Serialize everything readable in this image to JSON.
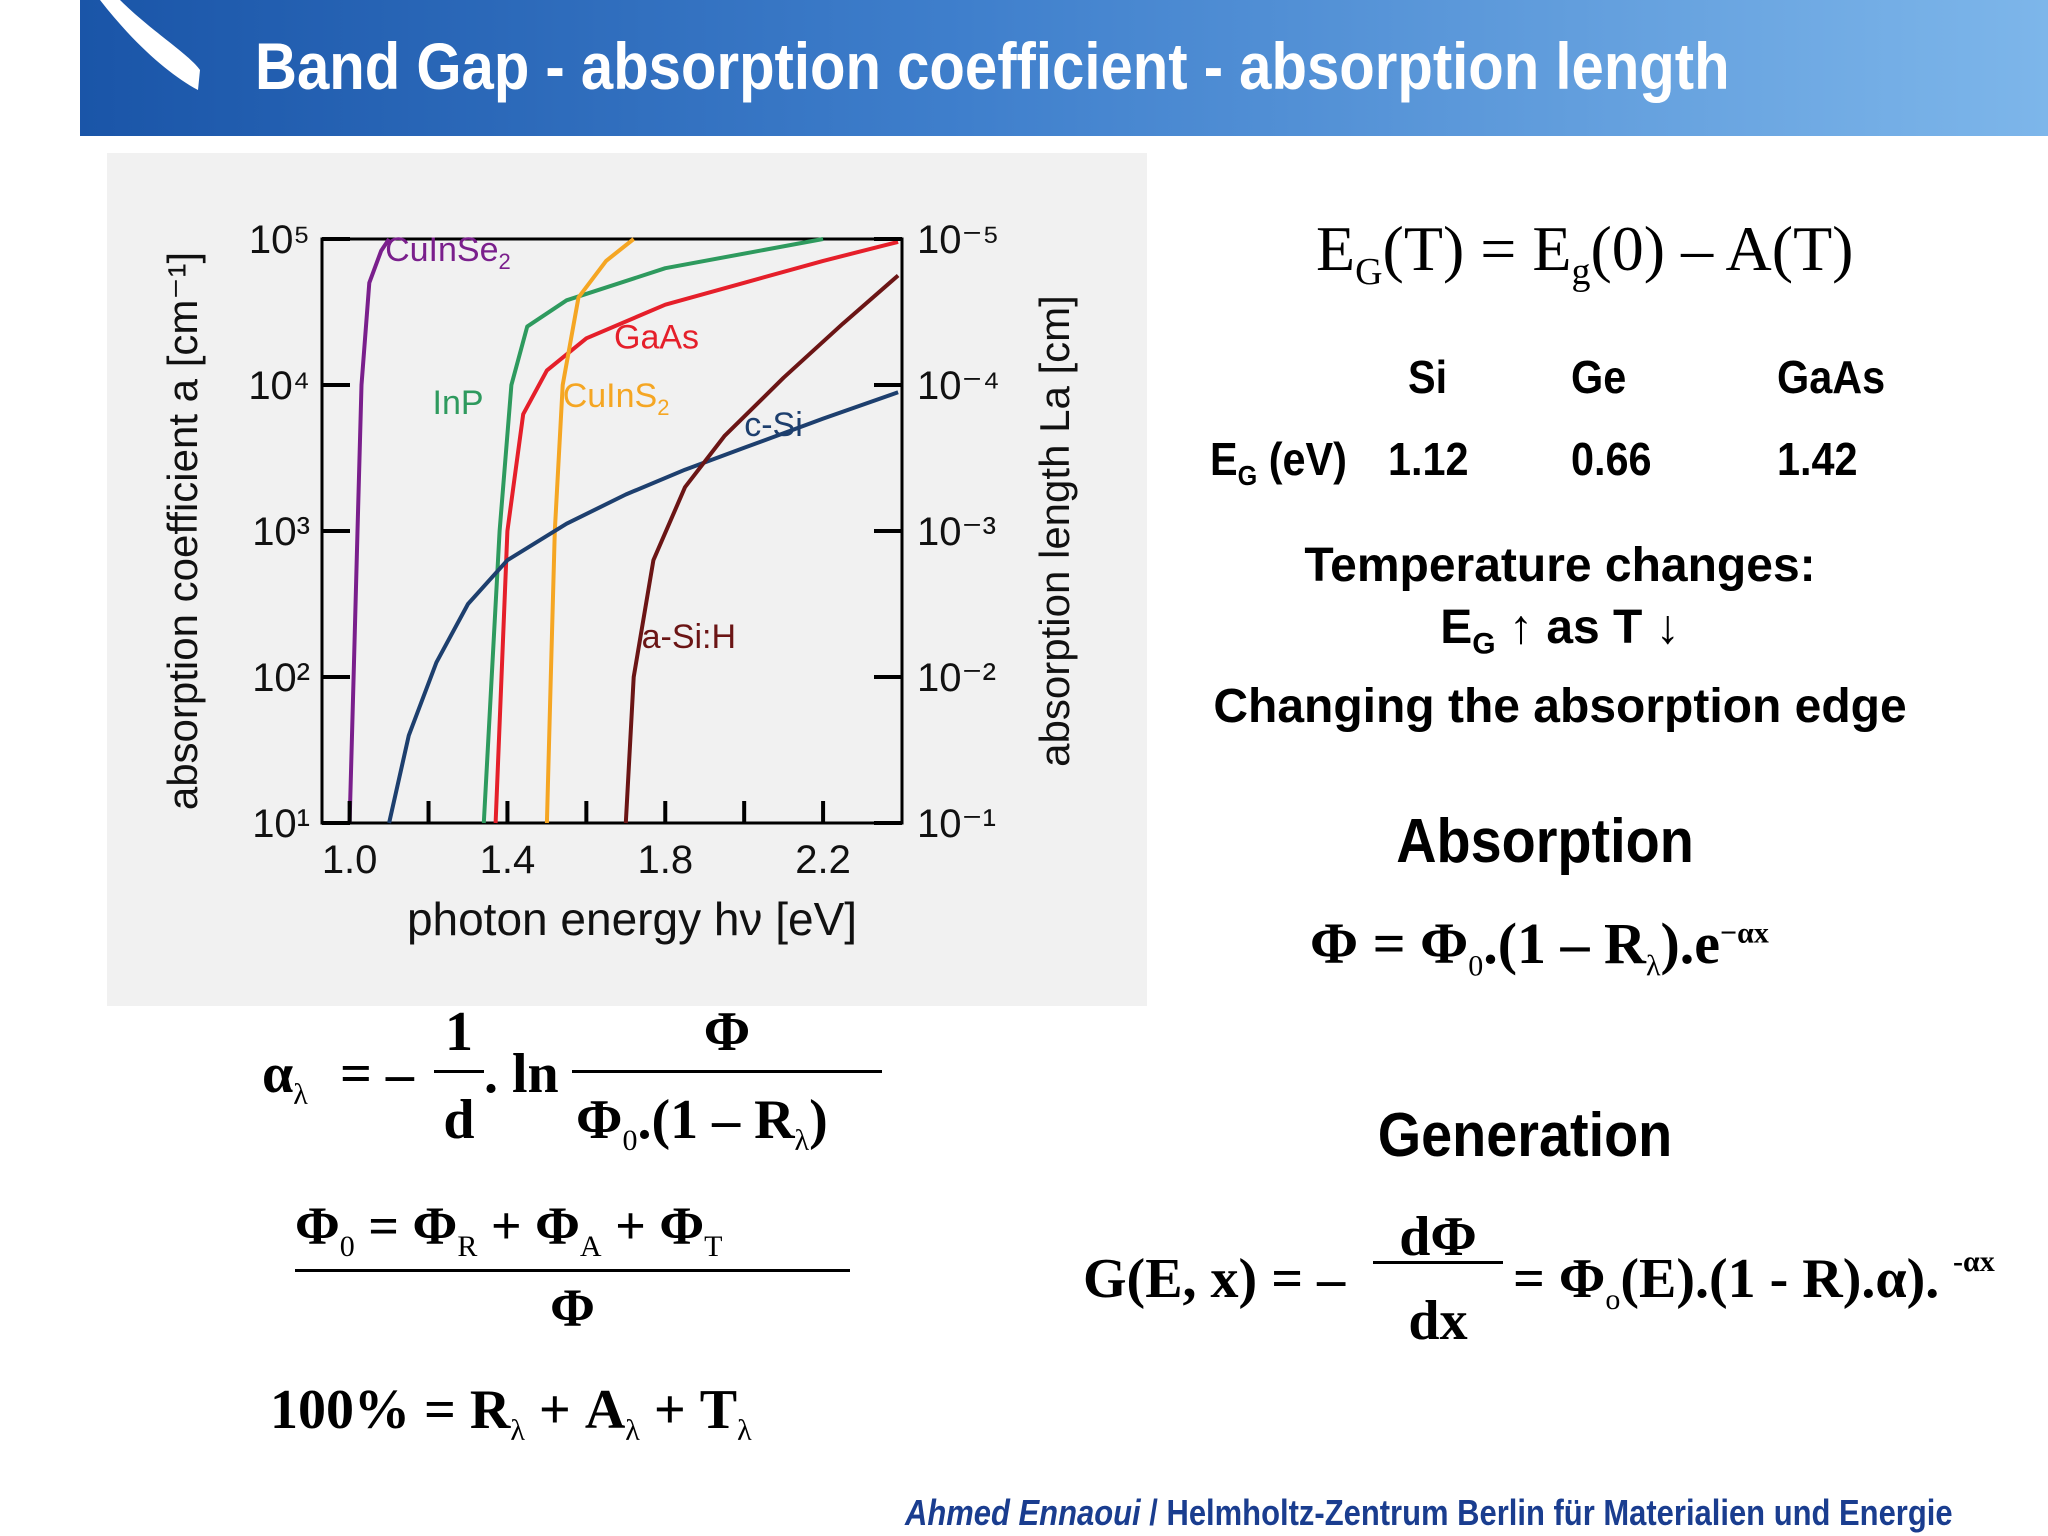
{
  "header": {
    "title": "Band Gap - absorption coefficient - absorption length"
  },
  "chart_data": {
    "type": "line",
    "xlabel": "photon energy hν [eV]",
    "ylabel_left": "absorption coefficient a [cm⁻¹]",
    "ylabel_right": "absorption length La [cm]",
    "xlim": [
      0.93,
      2.4
    ],
    "x_ticks": [
      "1.0",
      "1.4",
      "1.8",
      "2.2"
    ],
    "y_left_scale": "log",
    "y_left_ticks": [
      "10¹",
      "10²",
      "10³",
      "10⁴",
      "10⁵"
    ],
    "y_right_ticks": [
      "10⁻¹",
      "10⁻²",
      "10⁻³",
      "10⁻⁴",
      "10⁻⁵"
    ],
    "ylim_log10": [
      1,
      5
    ],
    "grid": false,
    "series": [
      {
        "name": "CuInSe2",
        "label_main": "CuInSe",
        "label_sub": "2",
        "color": "#7a1f8c",
        "points": [
          [
            1.0,
            1
          ],
          [
            1.01,
            2.0
          ],
          [
            1.02,
            3.0
          ],
          [
            1.03,
            4.0
          ],
          [
            1.05,
            4.7
          ],
          [
            1.08,
            4.92
          ],
          [
            1.1,
            5.0
          ]
        ]
      },
      {
        "name": "InP",
        "label_main": "InP",
        "label_sub": "",
        "color": "#2e9a5e",
        "points": [
          [
            1.34,
            1
          ],
          [
            1.36,
            2.0
          ],
          [
            1.38,
            3.0
          ],
          [
            1.41,
            4.0
          ],
          [
            1.45,
            4.4
          ],
          [
            1.55,
            4.58
          ],
          [
            1.8,
            4.8
          ],
          [
            2.2,
            5.0
          ]
        ]
      },
      {
        "name": "GaAs",
        "label_main": "GaAs",
        "label_sub": "",
        "color": "#e51f2a",
        "points": [
          [
            1.37,
            1
          ],
          [
            1.385,
            2.0
          ],
          [
            1.4,
            3.0
          ],
          [
            1.44,
            3.8
          ],
          [
            1.5,
            4.1
          ],
          [
            1.6,
            4.32
          ],
          [
            1.8,
            4.55
          ],
          [
            2.0,
            4.7
          ],
          [
            2.2,
            4.85
          ],
          [
            2.39,
            4.98
          ]
        ]
      },
      {
        "name": "CuInS2",
        "label_main": "CuInS",
        "label_sub": "2",
        "color": "#f5a623",
        "points": [
          [
            1.5,
            1
          ],
          [
            1.51,
            2.0
          ],
          [
            1.52,
            3.0
          ],
          [
            1.54,
            4.0
          ],
          [
            1.58,
            4.6
          ],
          [
            1.65,
            4.85
          ],
          [
            1.72,
            5.0
          ]
        ]
      },
      {
        "name": "c-Si",
        "label_main": "c-Si",
        "label_sub": "",
        "color": "#1d3f6e",
        "points": [
          [
            1.1,
            1
          ],
          [
            1.15,
            1.6
          ],
          [
            1.22,
            2.1
          ],
          [
            1.3,
            2.5
          ],
          [
            1.4,
            2.8
          ],
          [
            1.55,
            3.05
          ],
          [
            1.7,
            3.25
          ],
          [
            1.85,
            3.42
          ],
          [
            2.0,
            3.57
          ],
          [
            2.2,
            3.77
          ],
          [
            2.39,
            3.95
          ]
        ]
      },
      {
        "name": "a-Si:H",
        "label_main": "a-Si:H",
        "label_sub": "",
        "color": "#6b1515",
        "points": [
          [
            1.7,
            1
          ],
          [
            1.72,
            2.0
          ],
          [
            1.77,
            2.8
          ],
          [
            1.85,
            3.3
          ],
          [
            1.95,
            3.65
          ],
          [
            2.1,
            4.05
          ],
          [
            2.25,
            4.42
          ],
          [
            2.39,
            4.75
          ]
        ]
      }
    ]
  },
  "bandgap_equation": {
    "lhs": "E",
    "lhs_sub": "G",
    "lhs_arg": "(T) = E",
    "g_sub": "g",
    "rhs": "(0) – A(T)"
  },
  "materials": {
    "row_label": "E",
    "row_label_sub": "G",
    "row_label_unit": " (eV)",
    "names": [
      "Si",
      "Ge",
      "GaAs"
    ],
    "values": [
      "1.12",
      "0.66",
      "1.42"
    ]
  },
  "temperature": {
    "line1": "Temperature changes:",
    "line2_symbol": "E",
    "line2_sub": "G",
    "line2_rest": " ↑ as T ↓",
    "line3": "Changing the absorption edge"
  },
  "absorption": {
    "heading": "Absorption",
    "eq_lhs": "Φ = Φ",
    "eq_sub0": "0",
    "eq_mid": ".(1 – R",
    "eq_sub_lambda": "λ",
    "eq_end": ").e",
    "eq_sup": "−αx"
  },
  "generation": {
    "heading": "Generation",
    "eq_lhs": "G(E, x) = –",
    "eq_num": "dΦ",
    "eq_den": "dx",
    "eq_rhs1": "= Φ",
    "eq_rhs_sub": "o",
    "eq_rhs2": "(E).(1 - R).α).",
    "eq_sup": "-αx"
  },
  "alpha_eq": {
    "alpha": "α",
    "alpha_sub": "λ",
    "eq": "= –",
    "frac1_num": "1",
    "frac1_den": "d",
    "ln": ". ln",
    "frac2_num": "Φ",
    "frac2_den_a": "Φ",
    "frac2_den_sub0": "0",
    "frac2_den_b": ".(1 – R",
    "frac2_den_sub": "λ",
    "frac2_den_c": ")"
  },
  "phi_eq": {
    "num_a": "Φ",
    "num_sub0": "0",
    "num_b": " = Φ",
    "num_subR": "R",
    "num_c": " + Φ",
    "num_subA": "A",
    "num_d": " + Φ",
    "num_subT": "T",
    "den": "Φ"
  },
  "percent_eq": {
    "a": "100% = R",
    "sub1": "λ",
    "b": " + A",
    "sub2": "λ",
    "c": " + T",
    "sub3": "λ"
  },
  "footer": {
    "author": "Ahmed Ennaoui",
    "separator": " / ",
    "institution": "Helmholtz-Zentrum Berlin für Materialien und Energie"
  }
}
